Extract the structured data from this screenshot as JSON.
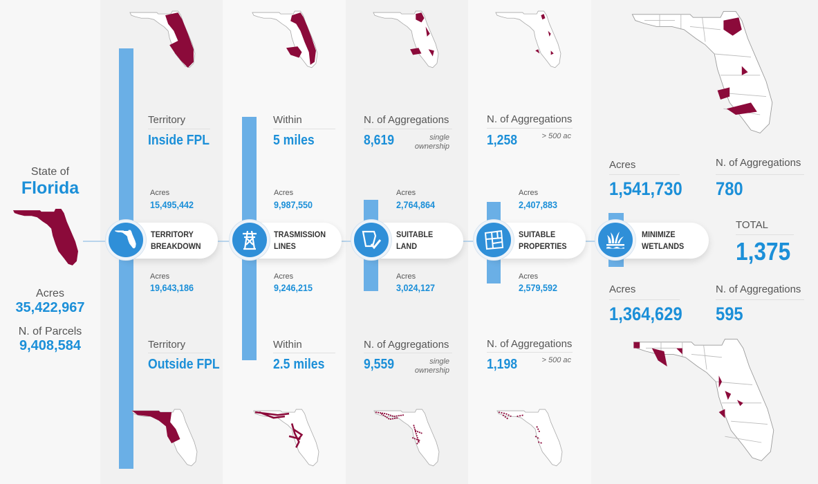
{
  "colors": {
    "accent": "#1b8fd8",
    "bar": "#6aafe6",
    "map_fill": "#8b0a3a",
    "icon_bg": "#2f8fd8"
  },
  "state": {
    "title_top": "State of",
    "title": "Florida",
    "acres_label": "Acres",
    "acres_value": "35,422,967",
    "parcels_label": "N. of Parcels",
    "parcels_value": "9,408,584"
  },
  "steps": [
    {
      "name": "TERRITORY",
      "name2": "BREAKDOWN",
      "icon": "florida-icon",
      "top": {
        "label": "Territory",
        "value": "Inside FPL",
        "acres_label": "Acres",
        "acres_value": "15,495,442"
      },
      "bottom": {
        "label": "Territory",
        "value": "Outside FPL",
        "acres_label": "Acres",
        "acres_value": "19,643,186"
      }
    },
    {
      "name": "TRASMISSION",
      "name2": "LINES",
      "icon": "transmission-tower-icon",
      "top": {
        "label": "Within",
        "value": "5 miles",
        "acres_label": "Acres",
        "acres_value": "9,987,550"
      },
      "bottom": {
        "label": "Within",
        "value": "2.5 miles",
        "acres_label": "Acres",
        "acres_value": "9,246,215"
      }
    },
    {
      "name": "SUITABLE",
      "name2": "LAND",
      "icon": "land-check-icon",
      "top": {
        "label": "N. of Aggregations",
        "value": "8,619",
        "note1": "single",
        "note2": "ownership",
        "acres_label": "Acres",
        "acres_value": "2,764,864"
      },
      "bottom": {
        "label": "N. of Aggregations",
        "value": "9,559",
        "note1": "single",
        "note2": "ownership",
        "acres_label": "Acres",
        "acres_value": "3,024,127"
      }
    },
    {
      "name": "SUITABLE",
      "name2": "PROPERTIES",
      "icon": "parcels-icon",
      "top": {
        "label": "N. of Aggregations",
        "value": "1,258",
        "note": "> 500 ac",
        "acres_label": "Acres",
        "acres_value": "2,407,883"
      },
      "bottom": {
        "label": "N. of Aggregations",
        "value": "1,198",
        "note": "> 500 ac",
        "acres_label": "Acres",
        "acres_value": "2,579,592"
      }
    },
    {
      "name": "MINIMIZE",
      "name2": "WETLANDS",
      "icon": "wetlands-icon",
      "top": {
        "acres_label": "Acres",
        "acres_value": "1,541,730",
        "agg_label": "N. of Aggregations",
        "agg_value": "780"
      },
      "bottom": {
        "acres_label": "Acres",
        "acres_value": "1,364,629",
        "agg_label": "N. of Aggregations",
        "agg_value": "595"
      },
      "total_label": "TOTAL",
      "total_value": "1,375"
    }
  ]
}
